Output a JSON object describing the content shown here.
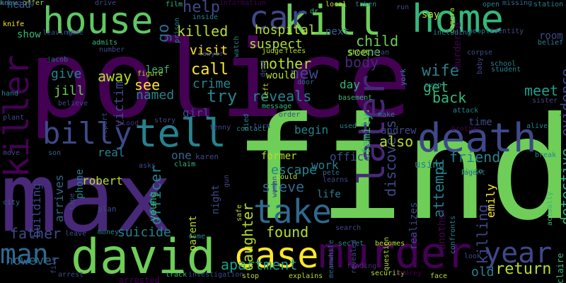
{
  "background": "#000000",
  "palette": [
    "#440154",
    "#482878",
    "#3e4989",
    "#31688e",
    "#26828e",
    "#1f9e89",
    "#35b779",
    "#6ece58",
    "#b5de2b",
    "#fde725"
  ],
  "words": [
    {
      "text": "police",
      "color": "#440154"
    },
    {
      "text": "find",
      "color": "#6ece58"
    },
    {
      "text": "max",
      "color": "#482878"
    },
    {
      "text": "kill",
      "color": "#6ece58"
    },
    {
      "text": "house",
      "color": "#5ec962"
    },
    {
      "text": "car",
      "color": "#3e4989"
    },
    {
      "text": "home",
      "color": "#35b779"
    },
    {
      "text": "david",
      "color": "#6ece58"
    },
    {
      "text": "murder",
      "color": "#440154"
    },
    {
      "text": "death",
      "color": "#3e4989"
    },
    {
      "text": "tell",
      "color": "#26828e"
    },
    {
      "text": "billy",
      "color": "#3e4989"
    },
    {
      "text": "case",
      "color": "#fde725"
    },
    {
      "text": "take",
      "color": "#31688e"
    },
    {
      "text": "later",
      "color": "#482878"
    },
    {
      "text": "killer",
      "color": "#440154"
    },
    {
      "text": "year",
      "color": "#3e4989"
    },
    {
      "text": "man",
      "color": "#31688e"
    },
    {
      "text": "killed",
      "color": "#b5de2b"
    },
    {
      "text": "hospital",
      "color": "#b5de2b"
    },
    {
      "text": "suspect",
      "color": "#b5de2b"
    },
    {
      "text": "mother",
      "color": "#b5de2b"
    },
    {
      "text": "reveals",
      "color": "#26828e"
    },
    {
      "text": "wife",
      "color": "#26828e"
    },
    {
      "text": "call",
      "color": "#fde725"
    },
    {
      "text": "crime",
      "color": "#26828e"
    },
    {
      "text": "try",
      "color": "#26828e"
    },
    {
      "text": "new",
      "color": "#3e4989"
    },
    {
      "text": "body",
      "color": "#482878"
    },
    {
      "text": "family",
      "color": "#35b779"
    },
    {
      "text": "discovers",
      "color": "#3e4989"
    },
    {
      "text": "return",
      "color": "#b5de2b"
    },
    {
      "text": "detective",
      "color": "#35b779"
    },
    {
      "text": "evidence",
      "color": "#3e4989"
    },
    {
      "text": "meet",
      "color": "#1f9e89"
    },
    {
      "text": "back",
      "color": "#35b779"
    },
    {
      "text": "get",
      "color": "#35b779"
    },
    {
      "text": "apartment",
      "color": "#1f9e89"
    },
    {
      "text": "father",
      "color": "#3e4989"
    },
    {
      "text": "daughter",
      "color": "#b5de2b"
    },
    {
      "text": "found",
      "color": "#b5de2b"
    },
    {
      "text": "steve",
      "color": "#31688e"
    },
    {
      "text": "escape",
      "color": "#26828e"
    },
    {
      "text": "also",
      "color": "#b5de2b"
    },
    {
      "text": "attempt",
      "color": "#26828e"
    },
    {
      "text": "killing",
      "color": "#3e4989"
    },
    {
      "text": "friend",
      "color": "#26828e"
    },
    {
      "text": "officer",
      "color": "#26828e"
    },
    {
      "text": "suicide",
      "color": "#26828e"
    },
    {
      "text": "victim",
      "color": "#3e4989"
    },
    {
      "text": "give",
      "color": "#26828e"
    },
    {
      "text": "jill",
      "color": "#6ece58"
    },
    {
      "text": "see",
      "color": "#fde725"
    },
    {
      "text": "named",
      "color": "#26828e"
    },
    {
      "text": "help",
      "color": "#3e4989"
    },
    {
      "text": "away",
      "color": "#b5de2b"
    },
    {
      "text": "child",
      "color": "#6ece58"
    },
    {
      "text": "visit",
      "color": "#fde725"
    },
    {
      "text": "arrives",
      "color": "#31688e"
    },
    {
      "text": "however",
      "color": "#31688e"
    },
    {
      "text": "old",
      "color": "#26828e"
    },
    {
      "text": "work",
      "color": "#26828e"
    },
    {
      "text": "real",
      "color": "#26828e"
    },
    {
      "text": "robert",
      "color": "#b5de2b"
    },
    {
      "text": "begin",
      "color": "#26828e"
    },
    {
      "text": "day",
      "color": "#35b779"
    },
    {
      "text": "emily",
      "color": "#fde725"
    },
    {
      "text": "girl",
      "color": "#3e4989"
    },
    {
      "text": "go",
      "color": "#31688e"
    },
    {
      "text": "life",
      "color": "#26828e"
    },
    {
      "text": "andrew",
      "color": "#3e4989"
    },
    {
      "text": "scene",
      "color": "#6ece58"
    },
    {
      "text": "time",
      "color": "#3e4989"
    },
    {
      "text": "office",
      "color": "#3e4989"
    },
    {
      "text": "former",
      "color": "#b5de2b"
    },
    {
      "text": "would",
      "color": "#b5de2b"
    },
    {
      "text": "using",
      "color": "#26828e"
    },
    {
      "text": "murdered",
      "color": "#440154"
    },
    {
      "text": "leaf",
      "color": "#35b779"
    },
    {
      "text": "arrested",
      "color": "#440154"
    },
    {
      "text": "parent",
      "color": "#b5de2b"
    },
    {
      "text": "young",
      "color": "#35b779"
    },
    {
      "text": "night",
      "color": "#3e4989"
    },
    {
      "text": "phone",
      "color": "#26828e"
    },
    {
      "text": "building",
      "color": "#3e4989"
    },
    {
      "text": "head",
      "color": "#31688e"
    },
    {
      "text": "show",
      "color": "#35b779"
    },
    {
      "text": "one",
      "color": "#31688e"
    },
    {
      "text": "karen",
      "color": "#3e4989"
    },
    {
      "text": "plan",
      "color": "#3e4989"
    },
    {
      "text": "alive",
      "color": "#26828e"
    },
    {
      "text": "break",
      "color": "#26828e"
    },
    {
      "text": "photo",
      "color": "#35b779"
    },
    {
      "text": "realizes",
      "color": "#3e4989"
    },
    {
      "text": "another",
      "color": "#440154"
    },
    {
      "text": "claire",
      "color": "#35b779"
    },
    {
      "text": "actually",
      "color": "#35b779"
    },
    {
      "text": "room",
      "color": "#3e4989"
    },
    {
      "text": "belief",
      "color": "#26828e"
    },
    {
      "text": "school",
      "color": "#26828e"
    },
    {
      "text": "student",
      "color": "#26828e"
    },
    {
      "text": "sister",
      "color": "#3e4989"
    },
    {
      "text": "attack",
      "color": "#26828e"
    },
    {
      "text": "brother",
      "color": "#440154"
    },
    {
      "text": "corpse",
      "color": "#3e4989"
    },
    {
      "text": "people",
      "color": "#26828e"
    },
    {
      "text": "identity",
      "color": "#3e4989"
    },
    {
      "text": "missing",
      "color": "#31688e"
    },
    {
      "text": "station",
      "color": "#26828e"
    },
    {
      "text": "open",
      "color": "#26828e"
    },
    {
      "text": "camera",
      "color": "#b5de2b"
    },
    {
      "text": "run",
      "color": "#3e4989"
    },
    {
      "text": "say",
      "color": "#b5de2b"
    },
    {
      "text": "including",
      "color": "#26828e"
    },
    {
      "text": "taken",
      "color": "#26828e"
    },
    {
      "text": "local",
      "color": "#b5de2b"
    },
    {
      "text": "next",
      "color": "#31688e"
    },
    {
      "text": "dr",
      "color": "#35b779"
    },
    {
      "text": "shoot",
      "color": "#b5de2b"
    },
    {
      "text": "alan",
      "color": "#3e4989"
    },
    {
      "text": "judge",
      "color": "#b5de2b"
    },
    {
      "text": "flees",
      "color": "#b5de2b"
    },
    {
      "text": "jacob",
      "color": "#31688e"
    },
    {
      "text": "lawyer",
      "color": "#3e4989"
    },
    {
      "text": "watch",
      "color": "#26828e"
    },
    {
      "text": "prison",
      "color": "#26828e"
    },
    {
      "text": "inside",
      "color": "#26828e"
    },
    {
      "text": "film",
      "color": "#35b779"
    },
    {
      "text": "drive",
      "color": "#3e4989"
    },
    {
      "text": "information",
      "color": "#440154"
    },
    {
      "text": "offer",
      "color": "#b5de2b"
    },
    {
      "text": "knife",
      "color": "#fde725"
    },
    {
      "text": "leaving",
      "color": "#3e4989"
    },
    {
      "text": "name",
      "color": "#3e4989"
    },
    {
      "text": "admits",
      "color": "#35b779"
    },
    {
      "text": "number",
      "color": "#3e4989"
    },
    {
      "text": "figure",
      "color": "#b5de2b"
    },
    {
      "text": "believe",
      "color": "#3e4989"
    },
    {
      "text": "hand",
      "color": "#26828e"
    },
    {
      "text": "plant",
      "color": "#3e4989"
    },
    {
      "text": "blood",
      "color": "#482878"
    },
    {
      "text": "story",
      "color": "#3e4989"
    },
    {
      "text": "turn",
      "color": "#3e4989"
    },
    {
      "text": "contact",
      "color": "#26828e"
    },
    {
      "text": "left",
      "color": "#b5de2b"
    },
    {
      "text": "dead",
      "color": "#3e4989"
    },
    {
      "text": "door",
      "color": "#31688e"
    },
    {
      "text": "message",
      "color": "#35b779"
    },
    {
      "text": "order",
      "color": "#3e4989"
    },
    {
      "text": "basement",
      "color": "#35b779"
    },
    {
      "text": "make",
      "color": "#26828e"
    },
    {
      "text": "event",
      "color": "#26828e"
    },
    {
      "text": "york",
      "color": "#26828e"
    },
    {
      "text": "used",
      "color": "#26828e"
    },
    {
      "text": "tenny",
      "color": "#3e4989"
    },
    {
      "text": "died",
      "color": "#26828e"
    },
    {
      "text": "move",
      "color": "#3e4989"
    },
    {
      "text": "city",
      "color": "#31688e"
    },
    {
      "text": "son",
      "color": "#31688e"
    },
    {
      "text": "report",
      "color": "#3e4989"
    },
    {
      "text": "claim",
      "color": "#35b779"
    },
    {
      "text": "asks",
      "color": "#3e4989"
    },
    {
      "text": "could",
      "color": "#b5de2b"
    },
    {
      "text": "pete",
      "color": "#31688e"
    },
    {
      "text": "learns",
      "color": "#3e4989"
    },
    {
      "text": "woman",
      "color": "#3e4989"
    },
    {
      "text": "agent",
      "color": "#31688e"
    },
    {
      "text": "tape",
      "color": "#3e4989"
    },
    {
      "text": "gun",
      "color": "#3e4989"
    },
    {
      "text": "leave",
      "color": "#3e4989"
    },
    {
      "text": "money",
      "color": "#26828e"
    },
    {
      "text": "safe",
      "color": "#b5de2b"
    },
    {
      "text": "come",
      "color": "#26828e"
    },
    {
      "text": "secret",
      "color": "#26828e"
    },
    {
      "text": "becomes",
      "color": "#b5de2b"
    },
    {
      "text": "search",
      "color": "#3e4989"
    },
    {
      "text": "arrest",
      "color": "#3e4989"
    },
    {
      "text": "track",
      "color": "#35b779"
    },
    {
      "text": "investigation",
      "color": "#3e4989"
    },
    {
      "text": "stop",
      "color": "#b5de2b"
    },
    {
      "text": "explains",
      "color": "#b5de2b"
    },
    {
      "text": "meanwhile",
      "color": "#31688e"
    },
    {
      "text": "security",
      "color": "#b5de2b"
    },
    {
      "text": "audrey",
      "color": "#440154"
    },
    {
      "text": "face",
      "color": "#b5de2b"
    },
    {
      "text": "revealed",
      "color": "#3e4989"
    },
    {
      "text": "question",
      "color": "#b5de2b"
    },
    {
      "text": "confronts",
      "color": "#26828e"
    },
    {
      "text": "look",
      "color": "#3e4989"
    },
    {
      "text": "finding",
      "color": "#482878"
    },
    {
      "text": "file",
      "color": "#3e4989"
    },
    {
      "text": "baby",
      "color": "#3e4989"
    },
    {
      "text": "know",
      "color": "#35b779"
    },
    {
      "text": "managing",
      "color": "#3e4989"
    }
  ]
}
